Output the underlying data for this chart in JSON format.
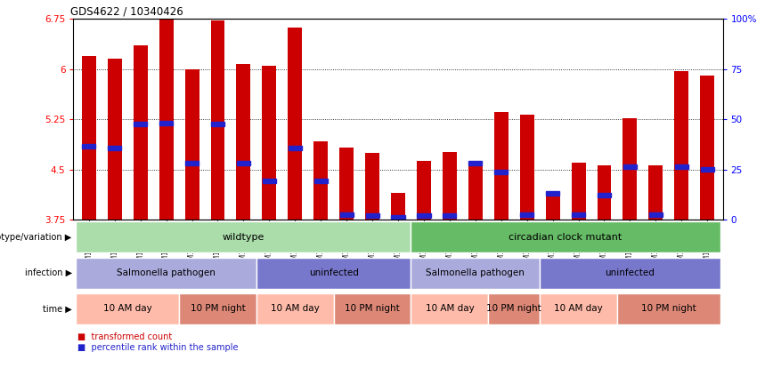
{
  "title": "GDS4622 / 10340426",
  "samples": [
    "GSM1129094",
    "GSM1129095",
    "GSM1129096",
    "GSM1129097",
    "GSM1129098",
    "GSM1129099",
    "GSM1129100",
    "GSM1129082",
    "GSM1129083",
    "GSM1129084",
    "GSM1129085",
    "GSM1129086",
    "GSM1129087",
    "GSM1129101",
    "GSM1129102",
    "GSM1129103",
    "GSM1129104",
    "GSM1129105",
    "GSM1129106",
    "GSM1129088",
    "GSM1129089",
    "GSM1129090",
    "GSM1129091",
    "GSM1129092",
    "GSM1129093"
  ],
  "bar_heights": [
    6.2,
    6.15,
    6.35,
    6.75,
    6.0,
    6.72,
    6.08,
    6.05,
    6.62,
    4.92,
    4.83,
    4.75,
    4.15,
    4.63,
    4.77,
    4.62,
    5.36,
    5.32,
    4.15,
    4.6,
    4.57,
    5.27,
    4.57,
    5.97,
    5.9
  ],
  "blue_marker_pos": [
    4.85,
    4.82,
    5.18,
    5.2,
    4.6,
    5.18,
    4.6,
    4.33,
    4.82,
    4.33,
    3.83,
    3.82,
    3.79,
    3.82,
    3.82,
    4.6,
    4.47,
    3.83,
    4.15,
    3.83,
    4.12,
    4.55,
    3.83,
    4.55,
    4.5
  ],
  "ymin": 3.75,
  "ymax": 6.75,
  "yticks": [
    3.75,
    4.5,
    5.25,
    6.0,
    6.75
  ],
  "ytick_labels": [
    "3.75",
    "4.5",
    "5.25",
    "6",
    "6.75"
  ],
  "right_yticks": [
    0,
    25,
    50,
    75,
    100
  ],
  "right_ytick_labels": [
    "0",
    "25",
    "50",
    "75",
    "100%"
  ],
  "bar_color": "#CC0000",
  "blue_color": "#2222CC",
  "bar_width": 0.55,
  "genotype_groups": [
    {
      "label": "wildtype",
      "start": 0,
      "end": 12,
      "color": "#AADDAA"
    },
    {
      "label": "circadian clock mutant",
      "start": 13,
      "end": 24,
      "color": "#66BB66"
    }
  ],
  "infection_groups": [
    {
      "label": "Salmonella pathogen",
      "start": 0,
      "end": 6,
      "color": "#AAAADD"
    },
    {
      "label": "uninfected",
      "start": 7,
      "end": 12,
      "color": "#7777CC"
    },
    {
      "label": "Salmonella pathogen",
      "start": 13,
      "end": 17,
      "color": "#AAAADD"
    },
    {
      "label": "uninfected",
      "start": 18,
      "end": 24,
      "color": "#7777CC"
    }
  ],
  "time_groups": [
    {
      "label": "10 AM day",
      "start": 0,
      "end": 3,
      "color": "#FFBBAA"
    },
    {
      "label": "10 PM night",
      "start": 4,
      "end": 6,
      "color": "#DD8877"
    },
    {
      "label": "10 AM day",
      "start": 7,
      "end": 9,
      "color": "#FFBBAA"
    },
    {
      "label": "10 PM night",
      "start": 10,
      "end": 12,
      "color": "#DD8877"
    },
    {
      "label": "10 AM day",
      "start": 13,
      "end": 15,
      "color": "#FFBBAA"
    },
    {
      "label": "10 PM night",
      "start": 16,
      "end": 17,
      "color": "#DD8877"
    },
    {
      "label": "10 AM day",
      "start": 18,
      "end": 20,
      "color": "#FFBBAA"
    },
    {
      "label": "10 PM night",
      "start": 21,
      "end": 24,
      "color": "#DD8877"
    }
  ],
  "row_labels": [
    "genotype/variation",
    "infection",
    "time"
  ],
  "legend_items": [
    {
      "label": "transformed count",
      "color": "#CC0000"
    },
    {
      "label": "percentile rank within the sample",
      "color": "#2222CC"
    }
  ]
}
